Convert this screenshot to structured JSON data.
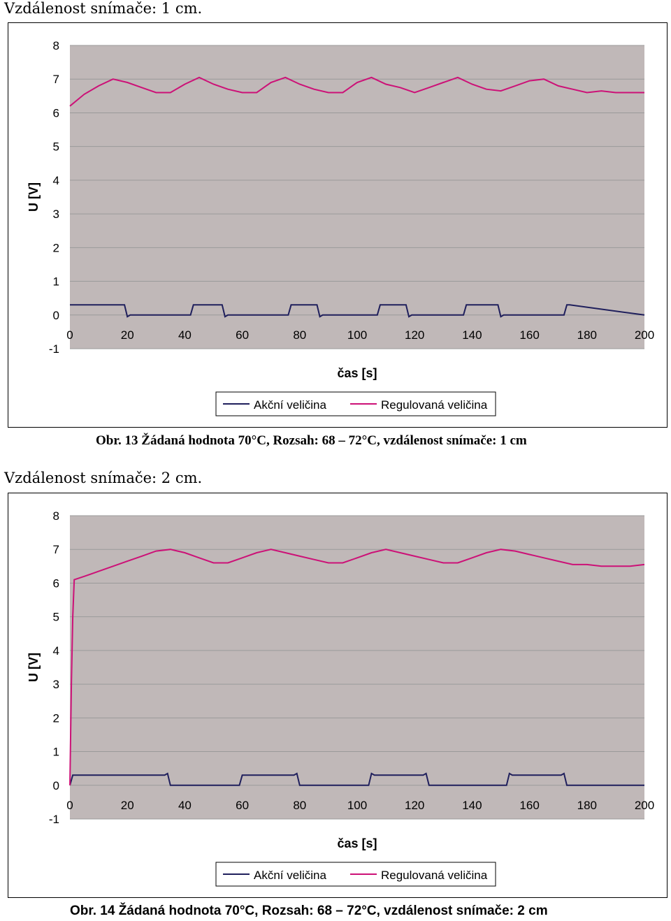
{
  "charts": [
    {
      "heading": "Vzdálenost snímače: 1 cm.",
      "caption": "Obr. 13 Žádaná hodnota 70°C, Rozsah: 68 – 72°C, vzdálenost snímače: 1 cm",
      "legend": [
        "Akční veličina",
        "Regulovaná veličina"
      ]
    },
    {
      "heading": "Vzdálenost snímače: 2 cm.",
      "caption": "Obr. 14 Žádaná hodnota 70°C, Rozsah: 68 – 72°C, vzdálenost snímače: 2 cm",
      "legend": [
        "Akční veličina",
        "Regulovaná veličina"
      ]
    }
  ],
  "chart_data": [
    {
      "type": "line",
      "title": "",
      "xlabel": "čas [s]",
      "ylabel": "U [V]",
      "xlim": [
        0,
        200
      ],
      "ylim": [
        -1,
        8
      ],
      "x_ticks": [
        "0",
        "20",
        "40",
        "60",
        "80",
        "100",
        "120",
        "140",
        "160",
        "180",
        "200"
      ],
      "y_ticks": [
        "8",
        "7",
        "6",
        "5",
        "4",
        "3",
        "2",
        "1",
        "0",
        "-1"
      ],
      "grid": true,
      "legend_position": "bottom",
      "series": [
        {
          "name": "Akční veličina",
          "color": "#1f1f5c",
          "x": [
            0,
            19,
            20,
            21,
            42,
            43,
            44,
            53,
            54,
            55,
            76,
            77,
            78,
            86,
            87,
            88,
            107,
            108,
            109,
            117,
            118,
            119,
            137,
            138,
            139,
            149,
            150,
            151,
            172,
            173,
            174,
            200
          ],
          "y": [
            0.3,
            0.3,
            -0.05,
            0,
            0,
            0.3,
            0.3,
            0.3,
            -0.05,
            0,
            0,
            0.3,
            0.3,
            0.3,
            -0.05,
            0,
            0,
            0.3,
            0.3,
            0.3,
            -0.05,
            0,
            0,
            0.3,
            0.3,
            0.3,
            -0.05,
            0,
            0,
            0.3,
            0.3,
            0
          ]
        },
        {
          "name": "Regulovaná veličina",
          "color": "#cc1177",
          "x": [
            0,
            5,
            10,
            15,
            20,
            25,
            30,
            35,
            40,
            45,
            50,
            55,
            60,
            65,
            70,
            75,
            80,
            85,
            90,
            95,
            100,
            105,
            110,
            115,
            120,
            125,
            130,
            135,
            140,
            145,
            150,
            155,
            160,
            165,
            170,
            175,
            180,
            185,
            190,
            195,
            200
          ],
          "y": [
            6.2,
            6.55,
            6.8,
            7.0,
            6.9,
            6.75,
            6.6,
            6.6,
            6.85,
            7.05,
            6.85,
            6.7,
            6.6,
            6.6,
            6.9,
            7.05,
            6.85,
            6.7,
            6.6,
            6.6,
            6.9,
            7.05,
            6.85,
            6.75,
            6.6,
            6.75,
            6.9,
            7.05,
            6.85,
            6.7,
            6.65,
            6.8,
            6.95,
            7.0,
            6.8,
            6.7,
            6.6,
            6.65,
            6.6,
            6.6,
            6.6
          ]
        }
      ]
    },
    {
      "type": "line",
      "title": "",
      "xlabel": "čas [s]",
      "ylabel": "U [V]",
      "xlim": [
        0,
        200
      ],
      "ylim": [
        -1,
        8
      ],
      "x_ticks": [
        "0",
        "20",
        "40",
        "60",
        "80",
        "100",
        "120",
        "140",
        "160",
        "180",
        "200"
      ],
      "y_ticks": [
        "8",
        "7",
        "6",
        "5",
        "4",
        "3",
        "2",
        "1",
        "0",
        "-1"
      ],
      "grid": true,
      "legend_position": "bottom",
      "series": [
        {
          "name": "Akční veličina",
          "color": "#1f1f5c",
          "x": [
            0,
            1,
            33,
            34,
            35,
            59,
            60,
            61,
            78,
            79,
            80,
            104,
            105,
            106,
            123,
            124,
            125,
            152,
            153,
            154,
            171,
            172,
            173,
            200
          ],
          "y": [
            0,
            0.3,
            0.3,
            0.35,
            0,
            0,
            0.3,
            0.3,
            0.3,
            0.35,
            0,
            0,
            0.35,
            0.3,
            0.3,
            0.35,
            0,
            0,
            0.35,
            0.3,
            0.3,
            0.35,
            0,
            0
          ]
        },
        {
          "name": "Regulovaná veličina",
          "color": "#cc1177",
          "x": [
            0,
            0.5,
            1,
            1.5,
            5,
            10,
            15,
            20,
            25,
            30,
            35,
            40,
            45,
            50,
            55,
            60,
            65,
            70,
            75,
            80,
            85,
            90,
            95,
            100,
            105,
            110,
            115,
            120,
            125,
            130,
            135,
            140,
            145,
            150,
            155,
            160,
            165,
            170,
            175,
            180,
            185,
            190,
            195,
            200
          ],
          "y": [
            0,
            3,
            5.0,
            6.1,
            6.2,
            6.35,
            6.5,
            6.65,
            6.8,
            6.95,
            7.0,
            6.9,
            6.75,
            6.6,
            6.6,
            6.75,
            6.9,
            7.0,
            6.9,
            6.8,
            6.7,
            6.6,
            6.6,
            6.75,
            6.9,
            7.0,
            6.9,
            6.8,
            6.7,
            6.6,
            6.6,
            6.75,
            6.9,
            7.0,
            6.95,
            6.85,
            6.75,
            6.65,
            6.55,
            6.55,
            6.5,
            6.5,
            6.5,
            6.55
          ]
        }
      ]
    }
  ]
}
